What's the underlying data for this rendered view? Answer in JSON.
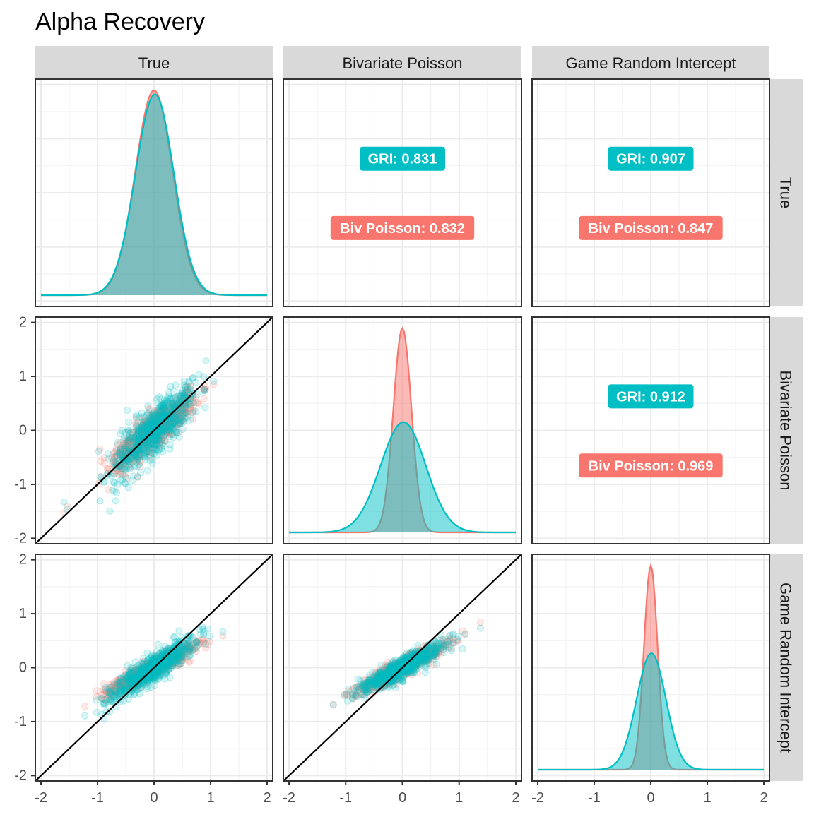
{
  "chart_data": {
    "type": "scatter",
    "title": "Alpha Recovery",
    "variables": [
      "True",
      "Bivariate Poisson",
      "Game Random Intercept"
    ],
    "x_ticks": [
      -2,
      -1,
      0,
      1,
      2
    ],
    "y_ticks": [
      -2,
      -1,
      0,
      1,
      2
    ],
    "xlim": [
      -2.1,
      2.1
    ],
    "ylim": [
      -2.1,
      2.1
    ],
    "grid": true,
    "identity_line": true,
    "colors": {
      "biv_poisson": "#F8766D",
      "gri": "#00BFC4"
    },
    "series": [
      {
        "name": "GRI",
        "color": "#00BFC4"
      },
      {
        "name": "Biv Poisson",
        "color": "#F8766D"
      }
    ],
    "correlations": [
      {
        "panel_row": "True",
        "panel_col": "Bivariate Poisson",
        "gri": "GRI: 0.831",
        "biv": "Biv Poisson: 0.832"
      },
      {
        "panel_row": "True",
        "panel_col": "Game Random Intercept",
        "gri": "GRI: 0.907",
        "biv": "Biv Poisson: 0.847"
      },
      {
        "panel_row": "Bivariate Poisson",
        "panel_col": "Game Random Intercept",
        "gri": "GRI: 0.912",
        "biv": "Biv Poisson: 0.969"
      }
    ],
    "densities": [
      {
        "variable": "True",
        "gri_sd": 0.34,
        "biv_sd": 0.33,
        "gri_peak_rel": 0.98,
        "biv_peak_rel": 1.0
      },
      {
        "variable": "Bivariate Poisson",
        "gri_sd": 0.4,
        "biv_sd": 0.16,
        "gri_peak_rel": 0.54,
        "biv_peak_rel": 1.0
      },
      {
        "variable": "Game Random Intercept",
        "gri_sd": 0.26,
        "biv_sd": 0.12,
        "gri_peak_rel": 0.57,
        "biv_peak_rel": 1.0
      }
    ],
    "scatter": [
      {
        "row": "Bivariate Poisson",
        "col": "True",
        "slope_biv": 0.85,
        "slope_gri": 0.95,
        "noise_biv": 0.16,
        "noise_gri": 0.24
      },
      {
        "row": "Game Random Intercept",
        "col": "True",
        "slope_biv": 0.55,
        "slope_gri": 0.7,
        "noise_biv": 0.08,
        "noise_gri": 0.13
      },
      {
        "row": "Game Random Intercept",
        "col": "Bivariate Poisson",
        "slope_biv": 0.55,
        "slope_gri": 0.55,
        "noise_biv": 0.08,
        "noise_gri": 0.09
      }
    ]
  }
}
